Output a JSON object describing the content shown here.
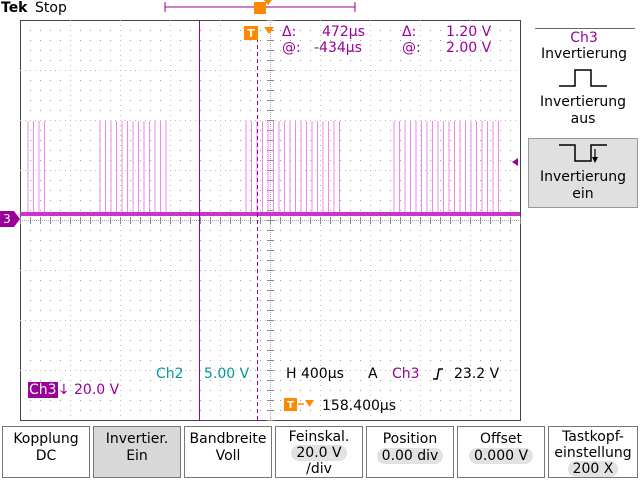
{
  "topbar": {
    "brand": "Tek",
    "status": "Stop"
  },
  "trigger": {
    "marker_label": "T"
  },
  "cursors": {
    "time_delta_label": "Δ:",
    "time_delta": "472µs",
    "time_at_label": "@:",
    "time_at": "-434µs",
    "volt_delta_label": "Δ:",
    "volt_delta": "1.20 V",
    "volt_at_label": "@:",
    "volt_at": "2.00 V"
  },
  "channel_marker": "3",
  "status": {
    "ch2_label": "Ch2",
    "ch2_scale": "5.00 V",
    "horizontal": "H 400µs",
    "trigger_mode": "A",
    "trigger_source": "Ch3",
    "trigger_level": "23.2 V",
    "ch3_label": "Ch3",
    "ch3_scale": "20.0 V",
    "trigger_pos_label": "T",
    "trigger_position": "158.400µs"
  },
  "side_menu": {
    "title_line1": "Ch3",
    "title_line2": "Invertierung",
    "btn_off_line1": "Invertierung",
    "btn_off_line2": "aus",
    "btn_on_line1": "Invertierung",
    "btn_on_line2": "ein"
  },
  "bottom_menu": [
    {
      "line1": "Kopplung",
      "line2": "DC"
    },
    {
      "line1": "Invertier.",
      "line2": "Ein"
    },
    {
      "line1": "Bandbreite",
      "line2": "Voll"
    },
    {
      "line1": "Feinskal.",
      "line2": "20.0 V",
      "line3": "/div"
    },
    {
      "line1": "Position",
      "line2": "0.00 div"
    },
    {
      "line1": "Offset",
      "line2": "0.000 V"
    },
    {
      "line1": "Tastkopf-",
      "line2": "einstellung",
      "line3": "200 X"
    }
  ],
  "colors": {
    "ch3": "#990099",
    "ch2": "#009999",
    "trigger": "#ff8800",
    "grid": "#aaaaaa"
  }
}
